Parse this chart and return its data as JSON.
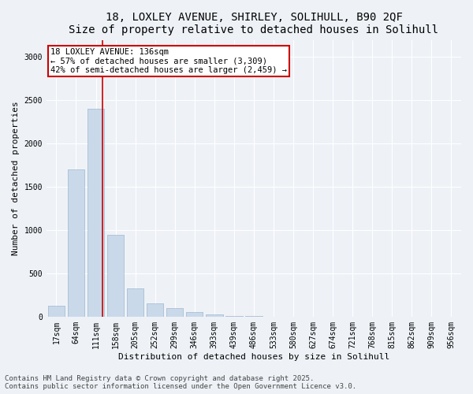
{
  "title_line1": "18, LOXLEY AVENUE, SHIRLEY, SOLIHULL, B90 2QF",
  "title_line2": "Size of property relative to detached houses in Solihull",
  "xlabel": "Distribution of detached houses by size in Solihull",
  "ylabel": "Number of detached properties",
  "bar_color": "#c9d9ea",
  "bar_edge_color": "#aabfd4",
  "background_color": "#eef2f7",
  "grid_color": "#ffffff",
  "categories": [
    "17sqm",
    "64sqm",
    "111sqm",
    "158sqm",
    "205sqm",
    "252sqm",
    "299sqm",
    "346sqm",
    "393sqm",
    "439sqm",
    "486sqm",
    "533sqm",
    "580sqm",
    "627sqm",
    "674sqm",
    "721sqm",
    "768sqm",
    "815sqm",
    "862sqm",
    "909sqm",
    "956sqm"
  ],
  "values": [
    130,
    1700,
    2400,
    950,
    330,
    155,
    100,
    55,
    30,
    10,
    5,
    0,
    0,
    0,
    0,
    0,
    0,
    0,
    0,
    0,
    0
  ],
  "ylim": [
    0,
    3200
  ],
  "yticks": [
    0,
    500,
    1000,
    1500,
    2000,
    2500,
    3000
  ],
  "property_line_x": 2.35,
  "annotation_text_line1": "18 LOXLEY AVENUE: 136sqm",
  "annotation_text_line2": "← 57% of detached houses are smaller (3,309)",
  "annotation_text_line3": "42% of semi-detached houses are larger (2,459) →",
  "annotation_box_color": "#ffffff",
  "annotation_box_edge": "#cc0000",
  "vline_color": "#cc0000",
  "footnote_line1": "Contains HM Land Registry data © Crown copyright and database right 2025.",
  "footnote_line2": "Contains public sector information licensed under the Open Government Licence v3.0.",
  "title_fontsize": 10,
  "axis_label_fontsize": 8,
  "tick_fontsize": 7,
  "annotation_fontsize": 7.5,
  "footnote_fontsize": 6.5
}
